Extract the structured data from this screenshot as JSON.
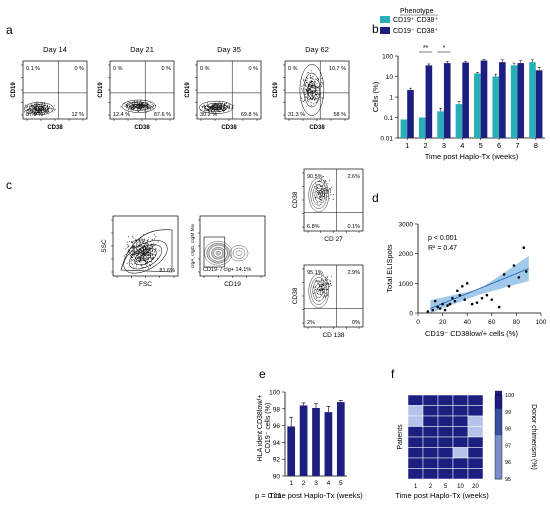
{
  "panel_labels": {
    "a": "a",
    "b": "b",
    "c": "c",
    "d": "d",
    "e": "e",
    "f": "f"
  },
  "panel_a": {
    "plots": [
      {
        "title": "Day 14",
        "ylabel": "CD19",
        "xlabel": "CD38",
        "ul": "0.1 %",
        "ur": "0 %",
        "ll": "87.9 %",
        "lr": "12 %"
      },
      {
        "title": "Day 21",
        "ylabel": "CD19",
        "xlabel": "CD38",
        "ul": "0 %",
        "ur": "0 %",
        "ll": "12.4 %",
        "lr": "87.6 %"
      },
      {
        "title": "Day 35",
        "ylabel": "CD19",
        "xlabel": "CD38",
        "ul": "0 %",
        "ur": "0 %",
        "ll": "30.2 %",
        "lr": "69.8 %"
      },
      {
        "title": "Day 62",
        "ylabel": "CD19",
        "xlabel": "CD38",
        "ul": "0 %",
        "ur": "10.7 %",
        "ll": "31.3 %",
        "lr": "58 %"
      }
    ]
  },
  "panel_c": {
    "fsc": {
      "xlabel": "FSC",
      "ylabel": "SSC",
      "pct": "81.6%"
    },
    "cd19": {
      "xlabel": "CD19",
      "ylabel": "cIgA, cIgG, cIgM Mix",
      "pct": "CD19- / cIg+ 14.1%"
    },
    "cd27": {
      "xlabel": "CD 27",
      "ylabel": "CD38",
      "ul": "90.5%",
      "ur": "2.6%",
      "ll": "6.8%",
      "lr": "0.1%"
    },
    "cd138": {
      "xlabel": "CD 138",
      "ylabel": "CD38",
      "ul": "95.1%",
      "ur": "2.9%",
      "ll": "2%",
      "lr": "0%"
    }
  },
  "chart_data": [
    {
      "panel": "b",
      "type": "bar",
      "legend_title": "Phenotype",
      "legend_placement": "top",
      "categories": [
        "1",
        "2",
        "3",
        "4",
        "5",
        "6",
        "7",
        "8"
      ],
      "series": [
        {
          "name": "CD19⁺ CD38⁺",
          "color": "#2aaeb8",
          "values": [
            0.08,
            0.1,
            0.2,
            0.45,
            14,
            10,
            35,
            50
          ],
          "errors": [
            0,
            0,
            0.08,
            0.15,
            2,
            3,
            10,
            15
          ]
        },
        {
          "name": "CD19⁻ CD38⁺",
          "color": "#1c1f80",
          "values": [
            2.2,
            35,
            45,
            48,
            60,
            50,
            45,
            20
          ],
          "errors": [
            0.5,
            6,
            10,
            8,
            10,
            15,
            15,
            8
          ]
        }
      ],
      "significance": [
        {
          "category": "2",
          "label": "**"
        },
        {
          "category": "3",
          "label": "*"
        }
      ],
      "xlabel": "Time post Haplo-Tx (weeks)",
      "ylabel": "Cells (%)",
      "yscale": "log",
      "ylim": [
        0.01,
        100
      ],
      "yticks": [
        "0.01",
        "0.1",
        "1",
        "10",
        "100"
      ]
    },
    {
      "panel": "d",
      "type": "scatter",
      "x": [
        8,
        12,
        14,
        16,
        18,
        20,
        22,
        24,
        26,
        28,
        30,
        32,
        34,
        36,
        38,
        40,
        44,
        48,
        52,
        56,
        60,
        66,
        70,
        74,
        78,
        82,
        86,
        88
      ],
      "y": [
        50,
        100,
        400,
        200,
        150,
        300,
        100,
        250,
        300,
        500,
        400,
        750,
        600,
        900,
        450,
        1000,
        300,
        350,
        500,
        600,
        450,
        200,
        1300,
        900,
        1600,
        1200,
        2200,
        1400
      ],
      "fit_line": {
        "x": [
          10,
          90
        ],
        "y": [
          150,
          1500
        ]
      },
      "annotations": [
        "p < 0.001",
        "R² = 0.47"
      ],
      "xlabel": "CD19⁻ CD38low/+ cells (%)",
      "ylabel": "Total ELISpots",
      "xlim": [
        0,
        100
      ],
      "ylim": [
        0,
        3000
      ],
      "xticks": [
        0,
        20,
        40,
        60,
        80,
        100
      ],
      "yticks": [
        0,
        1000,
        2000,
        3000
      ]
    },
    {
      "panel": "e",
      "type": "bar",
      "categories": [
        "1",
        "2",
        "3",
        "4",
        "5"
      ],
      "values": [
        95.9,
        98.4,
        98.1,
        97.6,
        98.8
      ],
      "errors": [
        1.1,
        0.3,
        0.5,
        0.7,
        0.2
      ],
      "color": "#1c1f80",
      "xlabel": "Time post Haplo-Tx (weeks)",
      "ylabel": "HLA ident CD38low/+ CD19⁻ cells (%)",
      "ylim": [
        90,
        100
      ],
      "yticks": [
        "90",
        "92",
        "94",
        "96",
        "98",
        "100"
      ],
      "annotation": "p = 0.11"
    },
    {
      "panel": "f",
      "type": "heatmap",
      "columns": [
        "1",
        "2",
        "5",
        "10",
        "20"
      ],
      "rows": 8,
      "values": [
        [
          100,
          100,
          100,
          100,
          100
        ],
        [
          98,
          100,
          100,
          100,
          100
        ],
        [
          98,
          100,
          100,
          100,
          98
        ],
        [
          100,
          100,
          100,
          100,
          98
        ],
        [
          100,
          100,
          100,
          100,
          100
        ],
        [
          100,
          100,
          100,
          97,
          100
        ],
        [
          100,
          100,
          100,
          100,
          100
        ],
        [
          100,
          100,
          100,
          100,
          100
        ]
      ],
      "xlabel": "Time post Haplo-Tx (weeks)",
      "ylabel": "Patients",
      "colorbar_label": "Donor chimerism (%)",
      "colorbar_ticks": [
        "95",
        "96",
        "97",
        "98",
        "99",
        "100"
      ],
      "color_low": "#e6e8f5",
      "color_high": "#1c1f80"
    }
  ]
}
